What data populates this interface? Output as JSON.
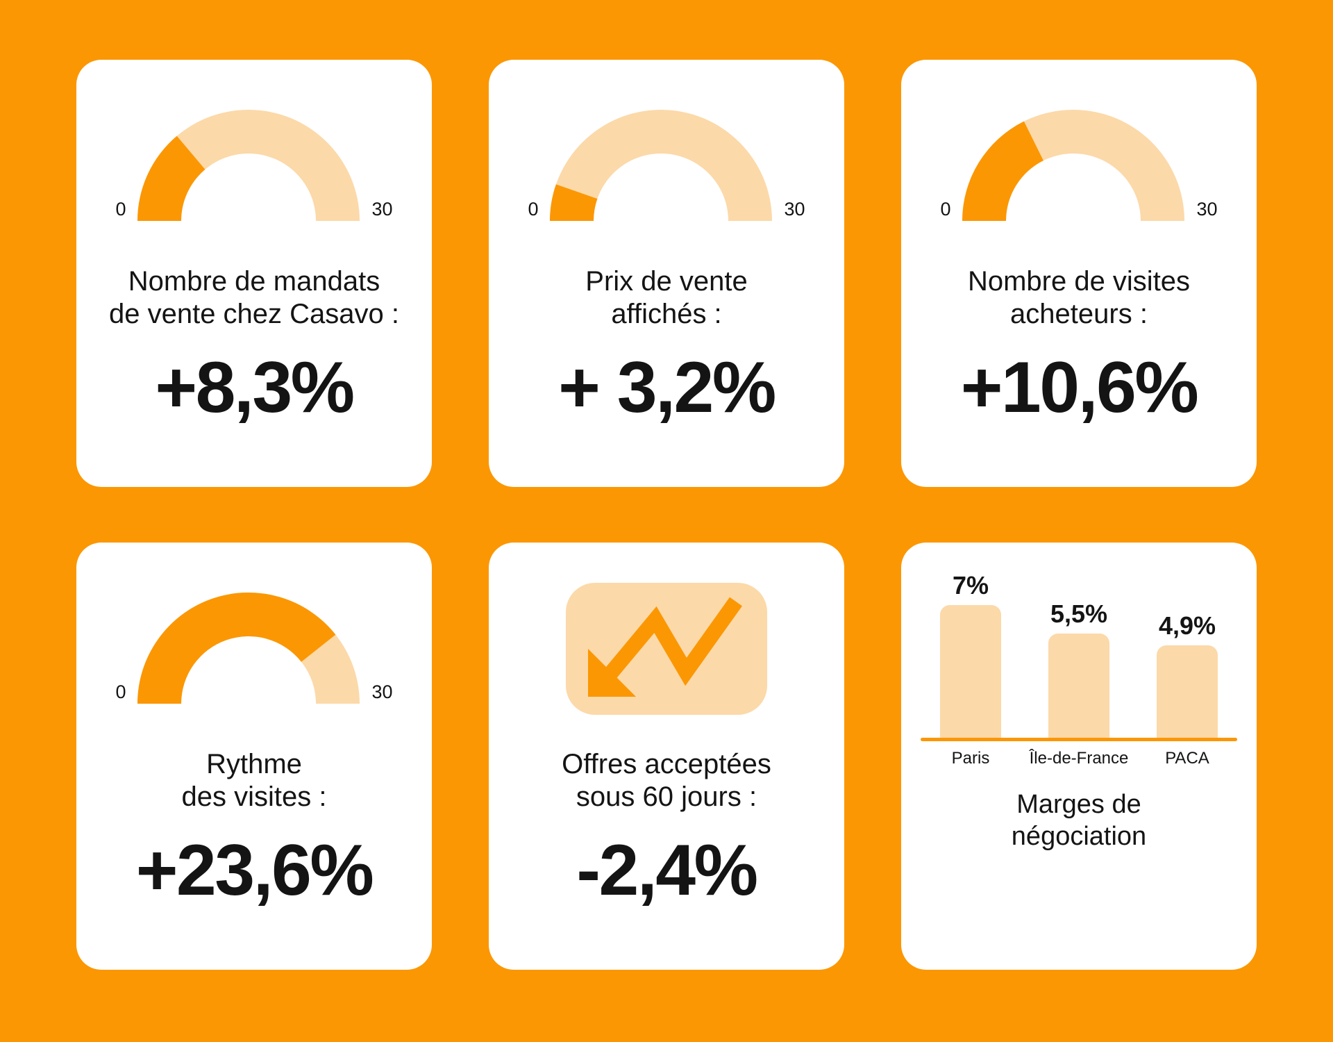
{
  "colors": {
    "background": "#FB9702",
    "accent": "#FB9702",
    "light": "#FCD9A9",
    "text": "#141414",
    "card": "#FFFFFF"
  },
  "chart_data": [
    {
      "type": "gauge",
      "panel": "mandats-de-vente",
      "title_lines": [
        "Nombre de mandats",
        "de vente chez Casavo :"
      ],
      "value": 8.3,
      "min": 0,
      "max": 30,
      "min_label": "0",
      "max_label": "30",
      "value_label": "+8,3%"
    },
    {
      "type": "gauge",
      "panel": "prix-de-vente",
      "title_lines": [
        "Prix de vente",
        "affichés :"
      ],
      "value": 3.2,
      "min": 0,
      "max": 30,
      "min_label": "0",
      "max_label": "30",
      "value_label": "+ 3,2%"
    },
    {
      "type": "gauge",
      "panel": "visites-acheteurs",
      "title_lines": [
        "Nombre de visites",
        "acheteurs :"
      ],
      "value": 10.6,
      "min": 0,
      "max": 30,
      "min_label": "0",
      "max_label": "30",
      "value_label": "+10,6%"
    },
    {
      "type": "gauge",
      "panel": "rythme-visites",
      "title_lines": [
        "Rythme",
        "des visites :"
      ],
      "value": 23.6,
      "min": 0,
      "max": 30,
      "min_label": "0",
      "max_label": "30",
      "value_label": "+23,6%"
    },
    {
      "type": "icon-stat",
      "panel": "offres-acceptees",
      "icon": "trend-down-arrow",
      "title_lines": [
        "Offres acceptées",
        "sous 60 jours :"
      ],
      "value": -2.4,
      "value_label": "-2,4%"
    },
    {
      "type": "bar",
      "panel": "marges-negociation",
      "title_lines": [
        "Marges de",
        "négociation"
      ],
      "categories": [
        "Paris",
        "Île-de-France",
        "PACA"
      ],
      "values": [
        7,
        5.5,
        4.9
      ],
      "bar_labels": [
        "7%",
        "5,5%",
        "4,9%"
      ],
      "ylim": [
        0,
        7
      ],
      "grid": false,
      "legend": false
    }
  ]
}
